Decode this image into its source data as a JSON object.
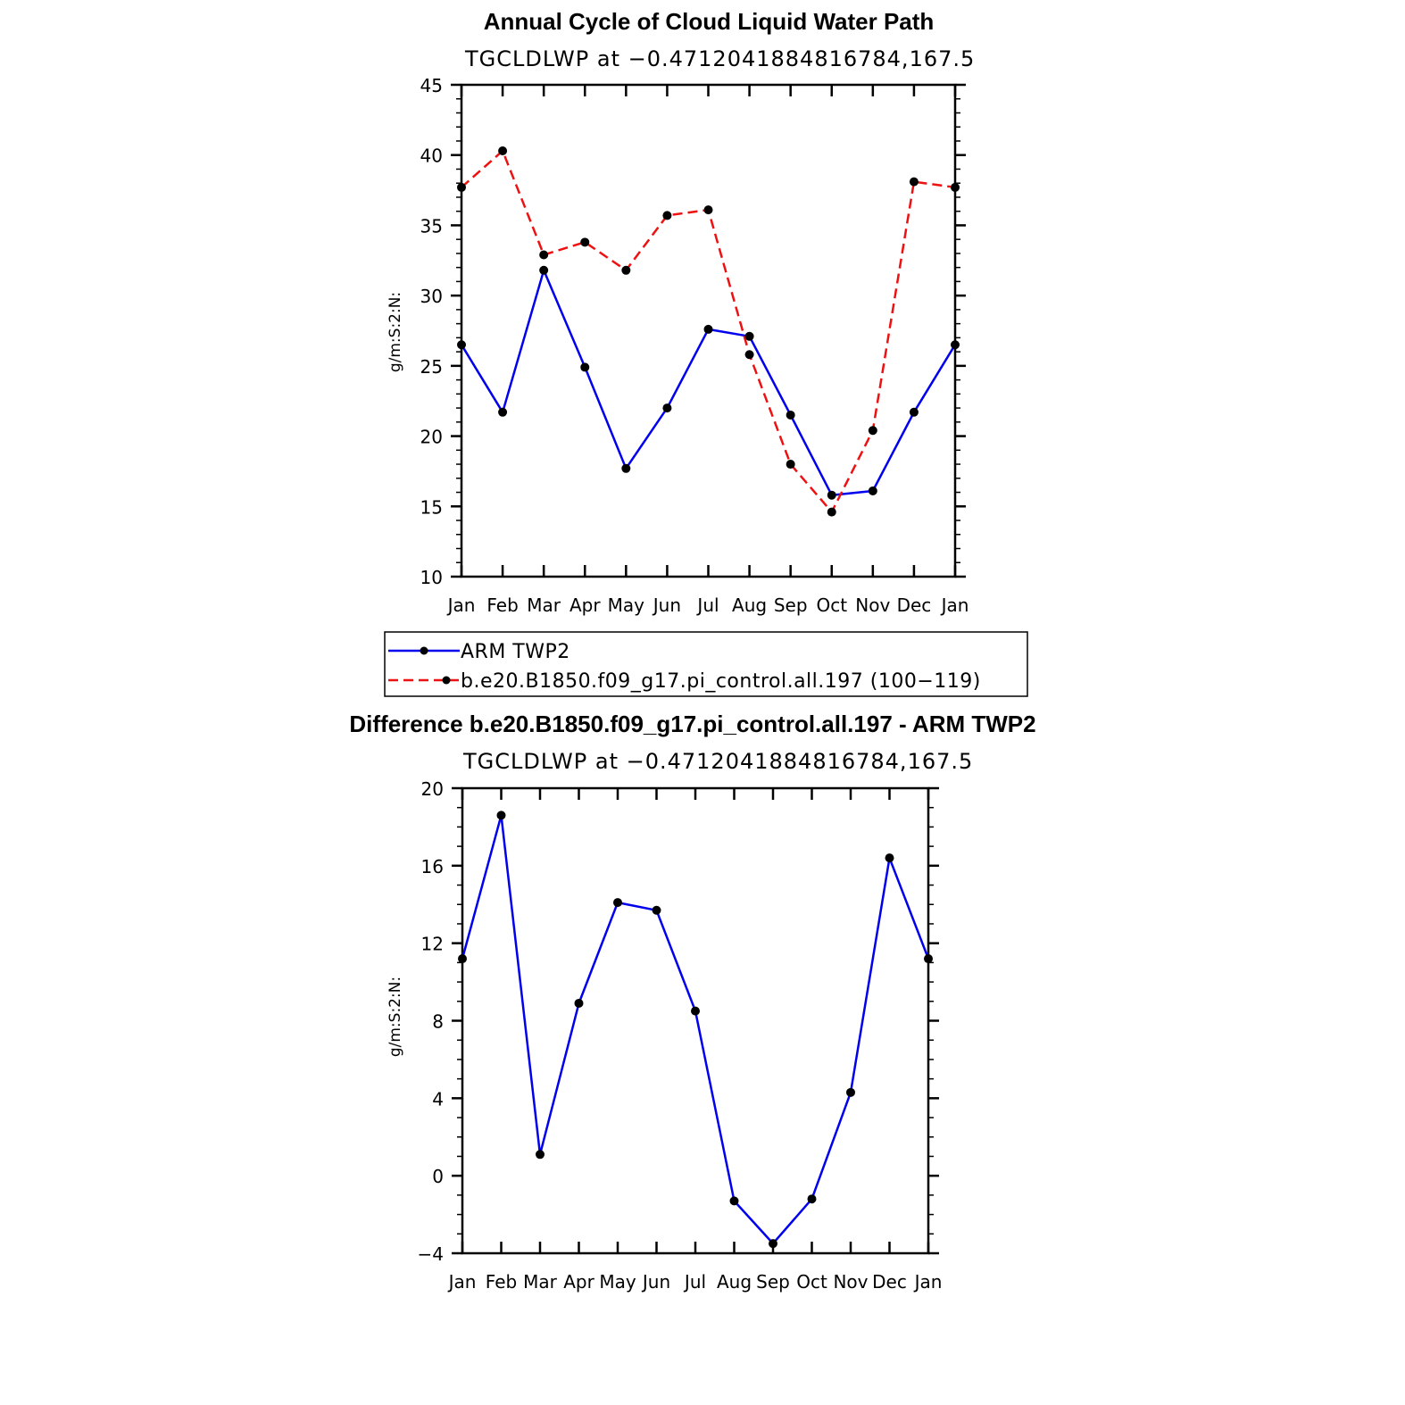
{
  "chart_data": [
    {
      "type": "line",
      "title": "Annual Cycle of Cloud Liquid Water Path",
      "subtitle": "TGCLDLWP at −0.4712041884816784,167.5",
      "xlabel": "",
      "ylabel": "g/m:S:2:N:",
      "categories": [
        "Jan",
        "Feb",
        "Mar",
        "Apr",
        "May",
        "Jun",
        "Jul",
        "Aug",
        "Sep",
        "Oct",
        "Nov",
        "Dec",
        "Jan"
      ],
      "ylim": [
        10,
        45
      ],
      "yticks": [
        "10",
        "15",
        "20",
        "25",
        "30",
        "35",
        "40",
        "45"
      ],
      "series": [
        {
          "name": "ARM TWP2",
          "color": "#0000ee",
          "style": "solid",
          "values": [
            26.5,
            21.7,
            31.8,
            24.9,
            17.7,
            22.0,
            27.6,
            27.1,
            21.5,
            15.8,
            16.1,
            21.7,
            26.5
          ]
        },
        {
          "name": "b.e20.B1850.f09_g17.pi_control.all.197 (100−119)",
          "color": "#ee1111",
          "style": "dashed",
          "values": [
            37.7,
            40.3,
            32.9,
            33.8,
            31.8,
            35.7,
            36.1,
            25.8,
            18.0,
            14.6,
            20.4,
            38.1,
            37.7
          ]
        }
      ],
      "legend": "below"
    },
    {
      "type": "line",
      "title": "Difference b.e20.B1850.f09_g17.pi_control.all.197 - ARM TWP2",
      "subtitle": "TGCLDLWP at −0.4712041884816784,167.5",
      "xlabel": "",
      "ylabel": "g/m:S:2:N:",
      "categories": [
        "Jan",
        "Feb",
        "Mar",
        "Apr",
        "May",
        "Jun",
        "Jul",
        "Aug",
        "Sep",
        "Oct",
        "Nov",
        "Dec",
        "Jan"
      ],
      "ylim": [
        -4,
        20
      ],
      "yticks": [
        "−4",
        "0",
        "4",
        "8",
        "12",
        "16",
        "20"
      ],
      "series": [
        {
          "name": "Difference",
          "color": "#0000ee",
          "style": "solid",
          "values": [
            11.2,
            18.6,
            1.1,
            8.9,
            14.1,
            13.7,
            8.5,
            -1.3,
            -3.5,
            -1.2,
            4.3,
            16.4,
            11.2
          ]
        }
      ]
    }
  ]
}
